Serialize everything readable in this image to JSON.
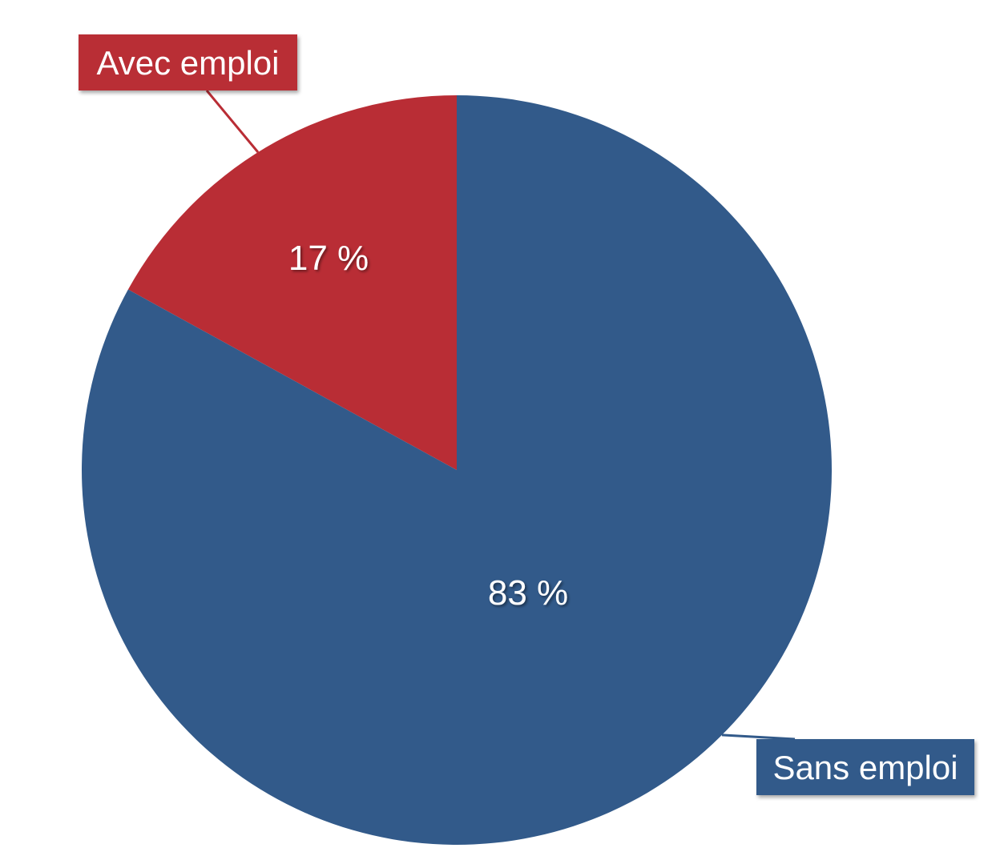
{
  "chart_data": {
    "type": "pie",
    "slices": [
      {
        "label": "Avec emploi",
        "value": 17,
        "value_label": "17 %",
        "color": "#b92d35"
      },
      {
        "label": "Sans emploi",
        "value": 83,
        "value_label": "83 %",
        "color": "#325a8a"
      }
    ],
    "start": "12 o'clock",
    "direction": "counter-clockwise for first slice",
    "labels": "callout boxes with leader lines"
  }
}
